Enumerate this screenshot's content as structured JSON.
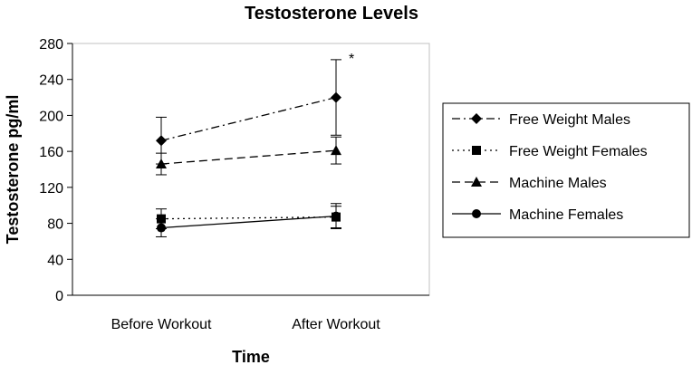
{
  "chart_data": {
    "type": "line",
    "title": "Testosterone Levels",
    "xlabel": "Time",
    "ylabel": "Testosterone pg/ml",
    "categories": [
      "Before Workout",
      "After Workout"
    ],
    "ylim": [
      0,
      280
    ],
    "yticks": [
      0,
      40,
      80,
      120,
      160,
      200,
      240,
      280
    ],
    "grid": false,
    "legend_position": "right",
    "annotation": {
      "text": "*",
      "series_index": 0,
      "category_index": 1
    },
    "series": [
      {
        "name": "Free Weight Males",
        "values": [
          172,
          220
        ],
        "error": [
          26,
          42
        ],
        "marker": "diamond",
        "dash": "dash-dot"
      },
      {
        "name": "Free Weight Females",
        "values": [
          85,
          87
        ],
        "error": [
          11,
          12
        ],
        "marker": "square",
        "dash": "dot"
      },
      {
        "name": "Machine Males",
        "values": [
          146,
          161
        ],
        "error": [
          12,
          15
        ],
        "marker": "triangle",
        "dash": "dash"
      },
      {
        "name": "Machine Females",
        "values": [
          75,
          88
        ],
        "error": [
          10,
          14
        ],
        "marker": "circle",
        "dash": "solid"
      }
    ]
  }
}
